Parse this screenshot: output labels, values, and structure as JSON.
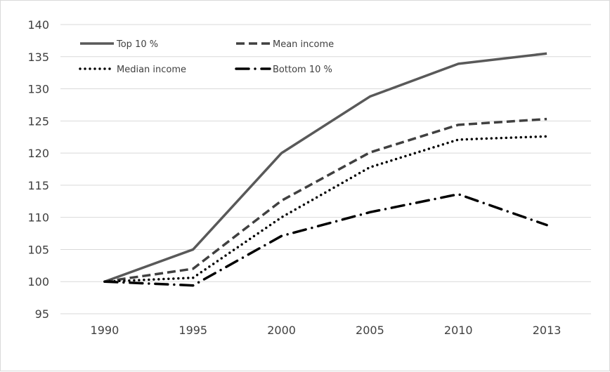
{
  "chart_data": {
    "type": "line",
    "categories": [
      "1990",
      "1995",
      "2000",
      "2005",
      "2010",
      "2013"
    ],
    "series": [
      {
        "name": "Top 10 %",
        "values": [
          100,
          105,
          120,
          128.8,
          133.9,
          135.5
        ],
        "color": "#595959",
        "style": "solid"
      },
      {
        "name": "Mean income",
        "values": [
          100,
          102,
          112.6,
          120.1,
          124.4,
          125.3
        ],
        "color": "#404040",
        "style": "dashed"
      },
      {
        "name": "Median income",
        "values": [
          100,
          100.6,
          110,
          117.8,
          122.1,
          122.6
        ],
        "color": "#000000",
        "style": "dotted"
      },
      {
        "name": "Bottom 10 %",
        "values": [
          100,
          99.4,
          107.1,
          110.8,
          113.6,
          108.8
        ],
        "color": "#000000",
        "style": "dash-dot"
      }
    ],
    "ylim": [
      95,
      140
    ],
    "yticks": [
      95,
      100,
      105,
      110,
      115,
      120,
      125,
      130,
      135,
      140
    ],
    "grid": "horizontal",
    "legend_position": "top-left",
    "title": "",
    "xlabel": "",
    "ylabel": ""
  }
}
